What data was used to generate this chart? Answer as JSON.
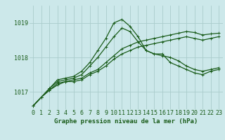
{
  "title": "Graphe pression niveau de la mer (hPa)",
  "bg_color": "#cce8ea",
  "line_color": "#1a5c1a",
  "grid_color": "#aacccc",
  "xlim": [
    -0.5,
    23.5
  ],
  "ylim": [
    1016.5,
    1019.5
  ],
  "yticks": [
    1017,
    1018,
    1019
  ],
  "ytick_labels": [
    "1017",
    "1018",
    "1019"
  ],
  "xticks": [
    0,
    1,
    2,
    3,
    4,
    5,
    6,
    7,
    8,
    9,
    10,
    11,
    12,
    13,
    14,
    15,
    16,
    17,
    18,
    19,
    20,
    21,
    22,
    23
  ],
  "series": [
    [
      1016.6,
      1016.85,
      1017.05,
      1017.25,
      1017.3,
      1017.35,
      1017.4,
      1017.55,
      1017.65,
      1017.85,
      1018.05,
      1018.25,
      1018.35,
      1018.45,
      1018.5,
      1018.55,
      1018.6,
      1018.65,
      1018.7,
      1018.75,
      1018.72,
      1018.65,
      1018.68,
      1018.7
    ],
    [
      1016.6,
      1016.85,
      1017.05,
      1017.2,
      1017.3,
      1017.3,
      1017.35,
      1017.5,
      1017.6,
      1017.75,
      1017.95,
      1018.1,
      1018.2,
      1018.3,
      1018.35,
      1018.4,
      1018.45,
      1018.5,
      1018.55,
      1018.6,
      1018.55,
      1018.5,
      1018.55,
      1018.6
    ],
    [
      1016.6,
      1016.85,
      1017.1,
      1017.3,
      1017.35,
      1017.4,
      1017.5,
      1017.75,
      1018.0,
      1018.3,
      1018.6,
      1018.85,
      1018.75,
      1018.45,
      1018.2,
      1018.1,
      1018.05,
      1018.0,
      1017.9,
      1017.75,
      1017.65,
      1017.6,
      1017.65,
      1017.7
    ],
    [
      1016.6,
      1016.85,
      1017.1,
      1017.35,
      1017.4,
      1017.45,
      1017.6,
      1017.85,
      1018.2,
      1018.55,
      1019.0,
      1019.1,
      1018.9,
      1018.6,
      1018.2,
      1018.1,
      1018.1,
      1017.85,
      1017.75,
      1017.65,
      1017.55,
      1017.5,
      1017.6,
      1017.65
    ]
  ],
  "marker": "+",
  "markersize": 3,
  "linewidth": 0.9,
  "title_fontsize": 6.5,
  "tick_fontsize": 6,
  "ytick_fontsize": 6
}
